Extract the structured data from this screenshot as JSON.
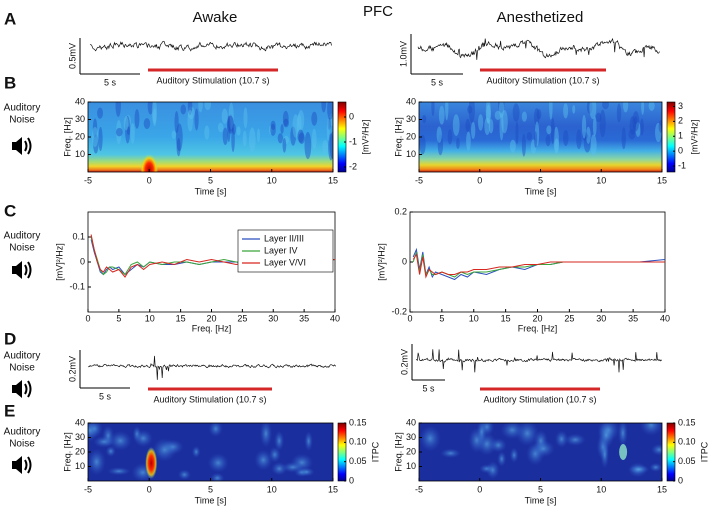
{
  "header": {
    "title": "PFC",
    "columns": [
      "Awake",
      "Anesthetized"
    ]
  },
  "row_label": [
    "Auditory",
    "Noise"
  ],
  "panels": [
    {
      "letter": "A",
      "scalebars": [
        {
          "amplitude": "0.5mV",
          "time": "5 s"
        },
        {
          "amplitude": "1.0mV",
          "time": "5 s"
        }
      ],
      "stimulus": "Auditory Stimulation (10.7 s)"
    },
    {
      "letter": "B",
      "xlabel": "Time [s]",
      "ylabel": "Freq. [Hz]",
      "xlim": [
        -5,
        15
      ],
      "ylim": [
        0,
        40
      ],
      "xticks": [
        -5,
        0,
        5,
        10,
        15
      ],
      "yticks": [
        10,
        20,
        30,
        40
      ],
      "colorbars": [
        {
          "label": "[mV²/Hz]",
          "lim": [
            -2.2,
            0.6
          ],
          "ticks": [
            0,
            -1,
            -2
          ]
        },
        {
          "label": "[mV²/Hz]",
          "lim": [
            -1.4,
            3.3
          ],
          "ticks": [
            3,
            2,
            1,
            0,
            -1
          ]
        }
      ]
    },
    {
      "letter": "C",
      "xlabel": "Freq. [Hz]",
      "ylabel": "[mV]²/Hz]",
      "xlim": [
        0,
        40
      ],
      "xticks": [
        0,
        5,
        10,
        15,
        20,
        25,
        30,
        35,
        40
      ],
      "x": [
        0.5,
        1,
        1.5,
        2,
        2.5,
        3,
        3.5,
        4,
        5,
        6,
        7,
        8,
        9,
        10,
        12,
        14,
        16,
        18,
        20,
        22,
        24,
        26,
        28,
        30,
        33,
        36,
        40
      ],
      "plots": [
        {
          "ylim": [
            -0.2,
            0.2
          ],
          "yticks": [
            -0.1,
            0,
            0.1
          ],
          "series": [
            {
              "name": "Layer II/III",
              "color": "#2b4fbf",
              "values": [
                0.09,
                0.04,
                0.0,
                -0.04,
                -0.05,
                -0.03,
                -0.02,
                -0.03,
                -0.02,
                -0.05,
                -0.03,
                -0.01,
                -0.02,
                0.0,
                -0.01,
                -0.01,
                0.0,
                -0.01,
                0.0,
                0.0,
                0.0,
                -0.01,
                0.0,
                0.0,
                0.0,
                0.0,
                0.01
              ]
            },
            {
              "name": "Layer IV",
              "color": "#3aa43a",
              "values": [
                0.1,
                0.05,
                0.01,
                -0.03,
                -0.05,
                -0.04,
                -0.02,
                -0.02,
                -0.03,
                -0.05,
                -0.01,
                0.0,
                -0.02,
                0.0,
                -0.01,
                0.0,
                0.0,
                -0.01,
                0.0,
                0.01,
                0.0,
                0.0,
                0.0,
                0.0,
                0.0,
                0.0,
                0.01
              ]
            },
            {
              "name": "Layer V/VI",
              "color": "#d6261e",
              "values": [
                0.11,
                0.05,
                0.0,
                -0.03,
                -0.04,
                -0.02,
                -0.03,
                -0.04,
                -0.03,
                -0.06,
                -0.02,
                -0.01,
                -0.03,
                -0.01,
                0.0,
                -0.01,
                0.01,
                0.0,
                0.01,
                0.0,
                -0.01,
                0.0,
                0.0,
                -0.01,
                0.0,
                0.0,
                0.01
              ]
            }
          ]
        },
        {
          "ylim": [
            -0.2,
            0.2
          ],
          "yticks": [
            -0.2,
            0,
            0.2
          ],
          "series": [
            {
              "color": "#2b4fbf",
              "values": [
                0.02,
                0.05,
                -0.03,
                0.04,
                -0.05,
                -0.02,
                -0.06,
                -0.04,
                -0.05,
                -0.06,
                -0.07,
                -0.05,
                -0.06,
                -0.04,
                -0.05,
                -0.03,
                -0.02,
                -0.03,
                -0.01,
                -0.01,
                0.0,
                0.0,
                0.0,
                0.0,
                0.0,
                0.0,
                0.01
              ]
            },
            {
              "color": "#3aa43a",
              "values": [
                0.0,
                0.04,
                -0.04,
                0.03,
                -0.05,
                -0.03,
                -0.05,
                -0.05,
                -0.04,
                -0.05,
                -0.06,
                -0.04,
                -0.05,
                -0.04,
                -0.04,
                -0.03,
                -0.02,
                -0.02,
                -0.01,
                -0.01,
                0.0,
                0.0,
                0.0,
                0.0,
                0.0,
                0.0,
                0.0
              ]
            },
            {
              "color": "#d6261e",
              "values": [
                0.01,
                0.03,
                -0.05,
                0.02,
                -0.06,
                -0.03,
                -0.04,
                -0.05,
                -0.04,
                -0.05,
                -0.05,
                -0.04,
                -0.04,
                -0.03,
                -0.03,
                -0.02,
                -0.02,
                -0.01,
                -0.01,
                0.0,
                0.0,
                0.0,
                0.0,
                0.0,
                0.0,
                0.0,
                0.0
              ]
            }
          ]
        }
      ]
    },
    {
      "letter": "D",
      "scalebars": [
        {
          "amplitude": "0.2mV",
          "time": "5 s"
        },
        {
          "amplitude": "0.2mV",
          "time": "5 s"
        }
      ],
      "stimulus": "Auditory Stimulation (10.7 s)"
    },
    {
      "letter": "E",
      "xlabel": "Time [s]",
      "ylabel": "Freq. [Hz]",
      "xlim": [
        -5,
        15
      ],
      "ylim": [
        0,
        40
      ],
      "xticks": [
        -5,
        0,
        5,
        10,
        15
      ],
      "yticks": [
        10,
        20,
        30,
        40
      ],
      "colorbars": [
        {
          "label": "ITPC",
          "lim": [
            0,
            0.15
          ],
          "ticks": [
            0.15,
            {
              "value": 0.1,
              "label": "0.10"
            },
            0.05,
            0
          ]
        },
        {
          "label": "ITPC",
          "lim": [
            0,
            0.15
          ],
          "ticks": [
            0.15,
            {
              "value": 0.1,
              "label": "0.10"
            },
            0.05,
            0
          ]
        }
      ]
    }
  ]
}
